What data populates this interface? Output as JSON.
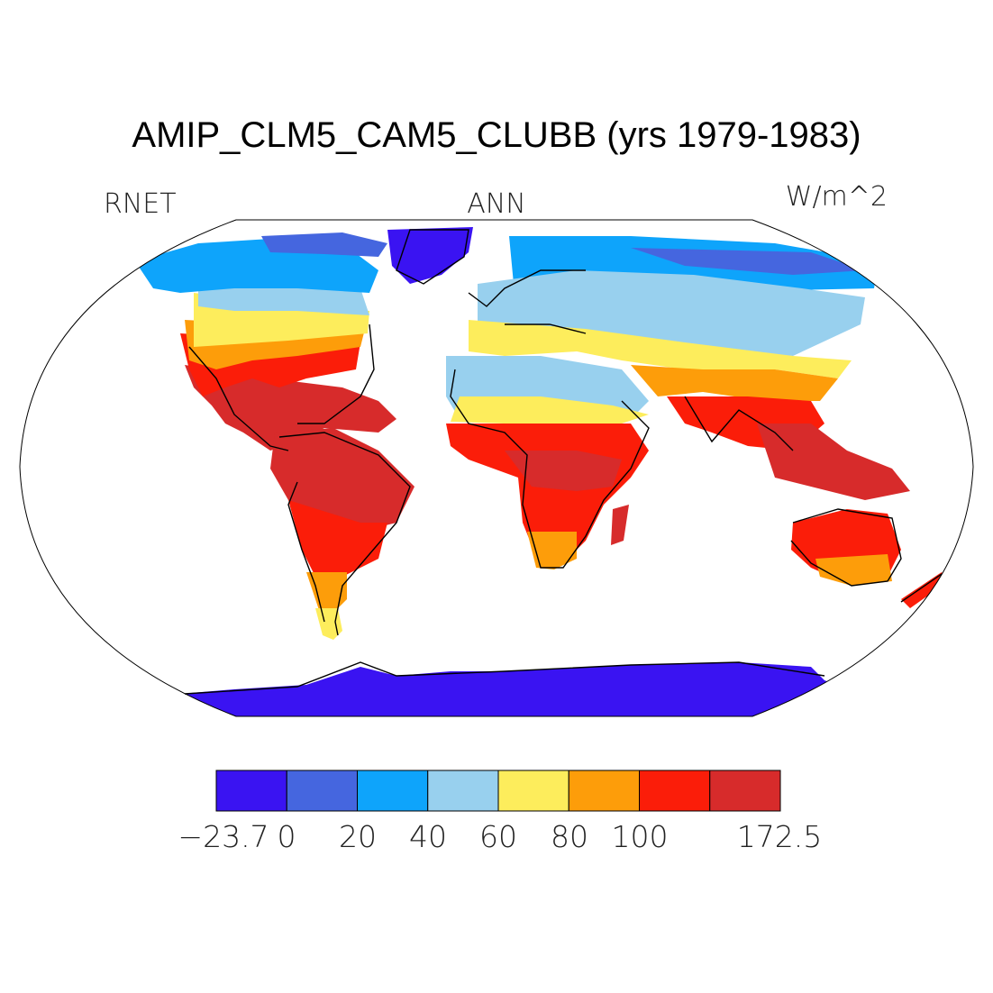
{
  "title": "AMIP_CLM5_CAM5_CLUBB (yrs 1979-1983)",
  "variable": "RNET",
  "season": "ANN",
  "units": "W/m^2",
  "colorbar": {
    "colors": [
      "#3a13f2",
      "#4566df",
      "#0ea4fb",
      "#98d0ee",
      "#fded5c",
      "#fd9d0a",
      "#fb1d09",
      "#d72b2b"
    ],
    "labels": [
      "−23.7",
      "0",
      "20",
      "40",
      "60",
      "80",
      "100",
      "172.5"
    ]
  },
  "chart_data": {
    "type": "heatmap",
    "title": "AMIP_CLM5_CAM5_CLUBB (yrs 1979-1983)",
    "variable": "RNET",
    "season": "ANN",
    "units": "W/m^2",
    "projection": "Robinson",
    "levels": [
      -23.7,
      0,
      20,
      40,
      60,
      80,
      100,
      172.5
    ],
    "level_colors": [
      "#3a13f2",
      "#4566df",
      "#0ea4fb",
      "#98d0ee",
      "#fded5c",
      "#fd9d0a",
      "#fb1d09",
      "#d72b2b"
    ],
    "ocean": "masked"
  }
}
